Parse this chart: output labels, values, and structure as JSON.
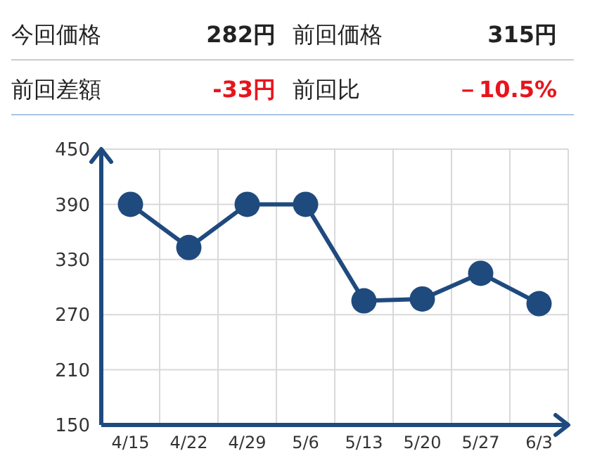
{
  "chart_data": {
    "type": "line",
    "annotations": [
      "今回価格",
      "282円",
      "前回価格",
      "315円",
      "前回差額",
      "-33円",
      "前回比",
      "－10.5%"
    ],
    "categories": [
      "4/15",
      "4/22",
      "4/29",
      "5/6",
      "5/13",
      "5/20",
      "5/27",
      "6/3"
    ],
    "series": [
      {
        "color": "#1f4a7e",
        "values": [
          390,
          343,
          390,
          390,
          285,
          287,
          315,
          282
        ]
      }
    ],
    "ylim": [
      150,
      450
    ],
    "yticks": [
      150,
      210,
      270,
      330,
      390,
      450
    ],
    "grid": true,
    "marker": "circle",
    "line_style": "solid"
  }
}
